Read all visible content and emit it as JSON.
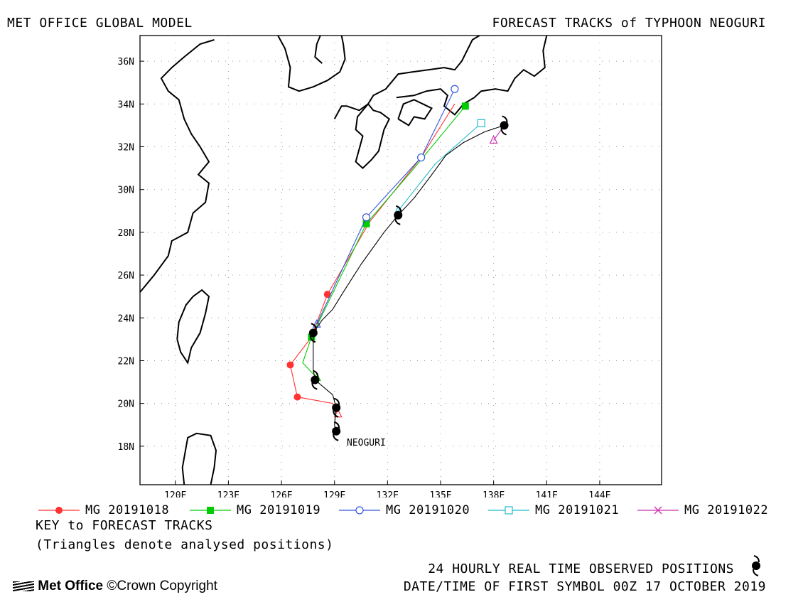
{
  "header": {
    "left": "MET OFFICE GLOBAL MODEL",
    "right": "FORECAST TRACKS of TYPHOON NEOGURI"
  },
  "footer": {
    "key_title": "KEY to FORECAST TRACKS",
    "key_note": "(Triangles denote analysed positions)",
    "observed_note": "24 HOURLY REAL TIME OBSERVED POSITIONS",
    "first_symbol": "DATE/TIME OF FIRST SYMBOL 00Z 17 OCTOBER 2019",
    "logo": "Met Office",
    "copyright": "©Crown Copyright"
  },
  "chart_data": {
    "type": "line",
    "title": "FORECAST TRACKS of TYPHOON NEOGURI",
    "xlim": [
      118,
      147.5
    ],
    "ylim": [
      16.2,
      37.2
    ],
    "x_ticks": [
      "120E",
      "123E",
      "126E",
      "129E",
      "132E",
      "135E",
      "138E",
      "141E",
      "144E"
    ],
    "x_tick_values": [
      120,
      123,
      126,
      129,
      132,
      135,
      138,
      141,
      144
    ],
    "y_ticks": [
      "18N",
      "20N",
      "22N",
      "24N",
      "26N",
      "28N",
      "30N",
      "32N",
      "34N",
      "36N"
    ],
    "y_tick_values": [
      18,
      20,
      22,
      24,
      26,
      28,
      30,
      32,
      34,
      36
    ],
    "grid": true,
    "storm_label": "NEOGURI",
    "observed_track": {
      "name": "24 HOURLY REAL TIME OBSERVED POSITIONS",
      "color": "#000000",
      "points": [
        [
          129.1,
          18.7
        ],
        [
          129.0,
          19.0
        ],
        [
          129.1,
          19.8
        ],
        [
          128.9,
          20.4
        ],
        [
          127.9,
          21.1
        ],
        [
          127.8,
          21.6
        ],
        [
          127.8,
          22.5
        ],
        [
          127.8,
          23.3
        ],
        [
          128.3,
          23.9
        ],
        [
          128.9,
          24.4
        ],
        [
          129.5,
          25.2
        ],
        [
          130.5,
          26.5
        ],
        [
          131.8,
          28.0
        ],
        [
          132.6,
          28.8
        ],
        [
          133.5,
          29.6
        ],
        [
          134.6,
          30.8
        ],
        [
          135.3,
          31.6
        ],
        [
          136.3,
          32.2
        ],
        [
          137.5,
          32.7
        ],
        [
          138.6,
          33.0
        ]
      ],
      "markers": [
        [
          129.1,
          18.7
        ],
        [
          129.1,
          19.8
        ],
        [
          127.9,
          21.1
        ],
        [
          127.8,
          23.3
        ],
        [
          132.6,
          28.8
        ],
        [
          138.6,
          33.0
        ]
      ]
    },
    "series": [
      {
        "name": "MG 20191018",
        "color": "#ff3333",
        "marker": "filled-circle",
        "points": [
          [
            129.1,
            19.5
          ],
          [
            128.9,
            20.0
          ],
          [
            126.9,
            20.3
          ],
          [
            126.5,
            21.8
          ],
          [
            127.7,
            23.1
          ],
          [
            128.6,
            25.1
          ],
          [
            131.0,
            28.5
          ],
          [
            133.9,
            31.5
          ],
          [
            135.8,
            34.0
          ]
        ],
        "markers": [
          [
            126.9,
            20.3
          ],
          [
            126.5,
            21.8
          ],
          [
            128.6,
            25.1
          ],
          [
            133.9,
            31.5
          ]
        ]
      },
      {
        "name": "MG 20191019",
        "color": "#00cc00",
        "marker": "filled-square",
        "points": [
          [
            128.0,
            21.2
          ],
          [
            127.2,
            21.9
          ],
          [
            127.7,
            23.1
          ],
          [
            130.8,
            28.4
          ],
          [
            133.4,
            30.9
          ],
          [
            136.4,
            33.9
          ]
        ],
        "markers": [
          [
            127.7,
            23.1
          ],
          [
            130.8,
            28.4
          ],
          [
            136.4,
            33.9
          ]
        ]
      },
      {
        "name": "MG 20191020",
        "color": "#3355dd",
        "marker": "open-circle",
        "points": [
          [
            128.0,
            23.7
          ],
          [
            130.8,
            28.7
          ],
          [
            133.9,
            31.5
          ],
          [
            135.8,
            34.7
          ]
        ],
        "markers": [
          [
            130.8,
            28.7
          ],
          [
            133.9,
            31.5
          ],
          [
            135.8,
            34.7
          ]
        ]
      },
      {
        "name": "MG 20191021",
        "color": "#22bbcc",
        "marker": "open-square",
        "points": [
          [
            132.6,
            29.0
          ],
          [
            134.7,
            31.2
          ],
          [
            137.3,
            33.1
          ]
        ],
        "markers": [
          [
            137.3,
            33.1
          ]
        ]
      },
      {
        "name": "MG 20191022",
        "color": "#cc33aa",
        "marker": "cross",
        "points": [
          [
            138.0,
            32.3
          ],
          [
            138.6,
            33.0
          ]
        ],
        "markers": []
      }
    ],
    "analysed_triangles": [
      {
        "color": "#ff3333",
        "at": [
          129.2,
          19.5
        ]
      },
      {
        "color": "#00cc00",
        "at": [
          128.0,
          21.2
        ]
      },
      {
        "color": "#3355dd",
        "at": [
          128.0,
          23.7
        ]
      },
      {
        "color": "#22bbcc",
        "at": [
          132.6,
          29.0
        ]
      },
      {
        "color": "#cc33aa",
        "at": [
          138.0,
          32.3
        ]
      }
    ],
    "coastlines": [
      [
        [
          118.0,
          25.2
        ],
        [
          118.8,
          26.0
        ],
        [
          119.6,
          26.9
        ],
        [
          119.8,
          27.6
        ],
        [
          120.7,
          28.0
        ],
        [
          121.0,
          28.9
        ],
        [
          121.7,
          29.4
        ],
        [
          121.9,
          30.3
        ],
        [
          121.3,
          30.7
        ],
        [
          121.9,
          31.3
        ],
        [
          121.4,
          32.0
        ],
        [
          120.9,
          32.6
        ],
        [
          120.5,
          33.3
        ],
        [
          120.2,
          34.2
        ],
        [
          119.6,
          34.6
        ],
        [
          119.2,
          35.2
        ],
        [
          119.8,
          35.7
        ],
        [
          120.5,
          36.2
        ],
        [
          121.4,
          36.8
        ],
        [
          122.2,
          37.0
        ]
      ],
      [
        [
          120.1,
          23.0
        ],
        [
          120.3,
          22.4
        ],
        [
          120.7,
          21.9
        ],
        [
          120.9,
          22.6
        ],
        [
          121.4,
          23.3
        ],
        [
          121.7,
          24.2
        ],
        [
          121.9,
          25.0
        ],
        [
          121.5,
          25.3
        ],
        [
          121.0,
          25.0
        ],
        [
          120.6,
          24.6
        ],
        [
          120.2,
          23.8
        ],
        [
          120.1,
          23.0
        ]
      ],
      [
        [
          120.5,
          16.2
        ],
        [
          120.4,
          17.0
        ],
        [
          120.7,
          18.4
        ],
        [
          121.2,
          18.6
        ],
        [
          122.0,
          18.5
        ],
        [
          122.3,
          17.8
        ],
        [
          122.2,
          17.0
        ],
        [
          122.0,
          16.2
        ]
      ],
      [
        [
          125.8,
          37.2
        ],
        [
          126.2,
          36.6
        ],
        [
          126.5,
          35.7
        ],
        [
          126.4,
          34.8
        ],
        [
          127.0,
          34.6
        ],
        [
          127.8,
          34.8
        ],
        [
          128.6,
          35.1
        ],
        [
          129.3,
          35.5
        ],
        [
          129.6,
          36.1
        ],
        [
          129.5,
          36.8
        ],
        [
          129.4,
          37.2
        ]
      ],
      [
        [
          128.2,
          37.2
        ],
        [
          128.0,
          36.8
        ],
        [
          127.9,
          36.2
        ],
        [
          128.3,
          35.9
        ]
      ],
      [
        [
          129.0,
          33.3
        ],
        [
          129.4,
          33.9
        ],
        [
          129.7,
          33.9
        ],
        [
          130.4,
          33.7
        ],
        [
          130.9,
          34.0
        ],
        [
          131.2,
          34.4
        ],
        [
          131.9,
          34.7
        ],
        [
          132.6,
          35.4
        ],
        [
          133.4,
          35.5
        ],
        [
          134.3,
          35.6
        ],
        [
          135.2,
          35.7
        ],
        [
          135.8,
          35.6
        ],
        [
          136.2,
          36.0
        ],
        [
          136.8,
          37.0
        ],
        [
          137.2,
          37.2
        ]
      ],
      [
        [
          130.9,
          34.0
        ],
        [
          130.3,
          33.4
        ],
        [
          130.2,
          32.8
        ],
        [
          130.6,
          32.5
        ],
        [
          130.2,
          31.3
        ],
        [
          130.6,
          31.0
        ],
        [
          131.1,
          31.4
        ],
        [
          131.5,
          31.8
        ],
        [
          131.8,
          32.8
        ],
        [
          132.1,
          33.3
        ],
        [
          131.6,
          33.6
        ],
        [
          131.2,
          33.7
        ],
        [
          130.9,
          34.0
        ]
      ],
      [
        [
          132.6,
          33.3
        ],
        [
          133.2,
          33.0
        ],
        [
          133.5,
          33.4
        ],
        [
          134.1,
          33.3
        ],
        [
          134.5,
          33.8
        ],
        [
          133.5,
          34.2
        ],
        [
          132.9,
          34.0
        ],
        [
          132.6,
          33.3
        ]
      ],
      [
        [
          132.5,
          34.3
        ],
        [
          133.5,
          34.4
        ],
        [
          134.2,
          34.6
        ],
        [
          135.0,
          34.7
        ],
        [
          135.4,
          34.4
        ],
        [
          135.2,
          33.9
        ],
        [
          135.8,
          33.5
        ],
        [
          136.3,
          34.0
        ],
        [
          136.9,
          34.3
        ],
        [
          137.3,
          34.6
        ],
        [
          138.1,
          34.7
        ],
        [
          138.8,
          34.6
        ],
        [
          139.2,
          35.2
        ],
        [
          139.7,
          35.6
        ],
        [
          140.3,
          35.3
        ],
        [
          140.9,
          35.7
        ],
        [
          140.8,
          36.5
        ],
        [
          141.0,
          37.2
        ]
      ]
    ]
  }
}
